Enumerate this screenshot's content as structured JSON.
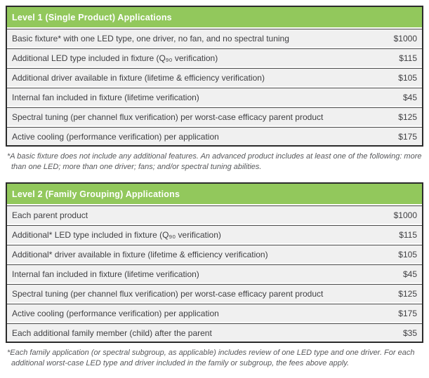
{
  "colors": {
    "header_green": "#92c85c",
    "row_gray": "#f0f0f0",
    "border_dark": "#2b2b2b",
    "text_dark": "#3f3f42",
    "footnote_gray": "#57585b"
  },
  "tables": [
    {
      "title": "Level 1 (Single Product) Applications",
      "rows": [
        {
          "desc": "Basic fixture* with one LED type, one driver, no fan, and no spectral tuning",
          "price": "$1000"
        },
        {
          "desc": "Additional LED type included in fixture (Q₉₀ verification)",
          "price": "$115"
        },
        {
          "desc": "Additional driver available in fixture (lifetime & efficiency verification)",
          "price": "$105"
        },
        {
          "desc": "Internal fan included in fixture (lifetime verification)",
          "price": "$45"
        },
        {
          "desc": "Spectral tuning (per channel flux verification) per worst-case efficacy parent product",
          "price": "$125"
        },
        {
          "desc": "Active cooling (performance verification) per application",
          "price": "$175"
        }
      ],
      "footnote": "*A basic fixture does not include any additional features. An advanced product includes at least one of the following: more than one LED; more than one driver; fans; and/or spectral tuning abilities."
    },
    {
      "title": "Level 2 (Family Grouping) Applications",
      "rows": [
        {
          "desc": "Each parent product",
          "price": "$1000"
        },
        {
          "desc": "Additional* LED type included in fixture (Q₉₀ verification)",
          "price": "$115"
        },
        {
          "desc": "Additional* driver available in fixture (lifetime & efficiency verification)",
          "price": "$105"
        },
        {
          "desc": "Internal fan included in fixture (lifetime verification)",
          "price": "$45"
        },
        {
          "desc": "Spectral tuning (per channel flux verification) per worst-case efficacy parent product",
          "price": "$125"
        },
        {
          "desc": "Active cooling (performance verification) per application",
          "price": "$175"
        },
        {
          "desc": "Each additional family member (child) after the parent",
          "price": "$35"
        }
      ],
      "footnote": "*Each family application (or spectral subgroup, as applicable) includes review of one LED type and one driver. For each additional worst-case LED type and driver included in the family or subgroup, the fees above apply."
    }
  ]
}
